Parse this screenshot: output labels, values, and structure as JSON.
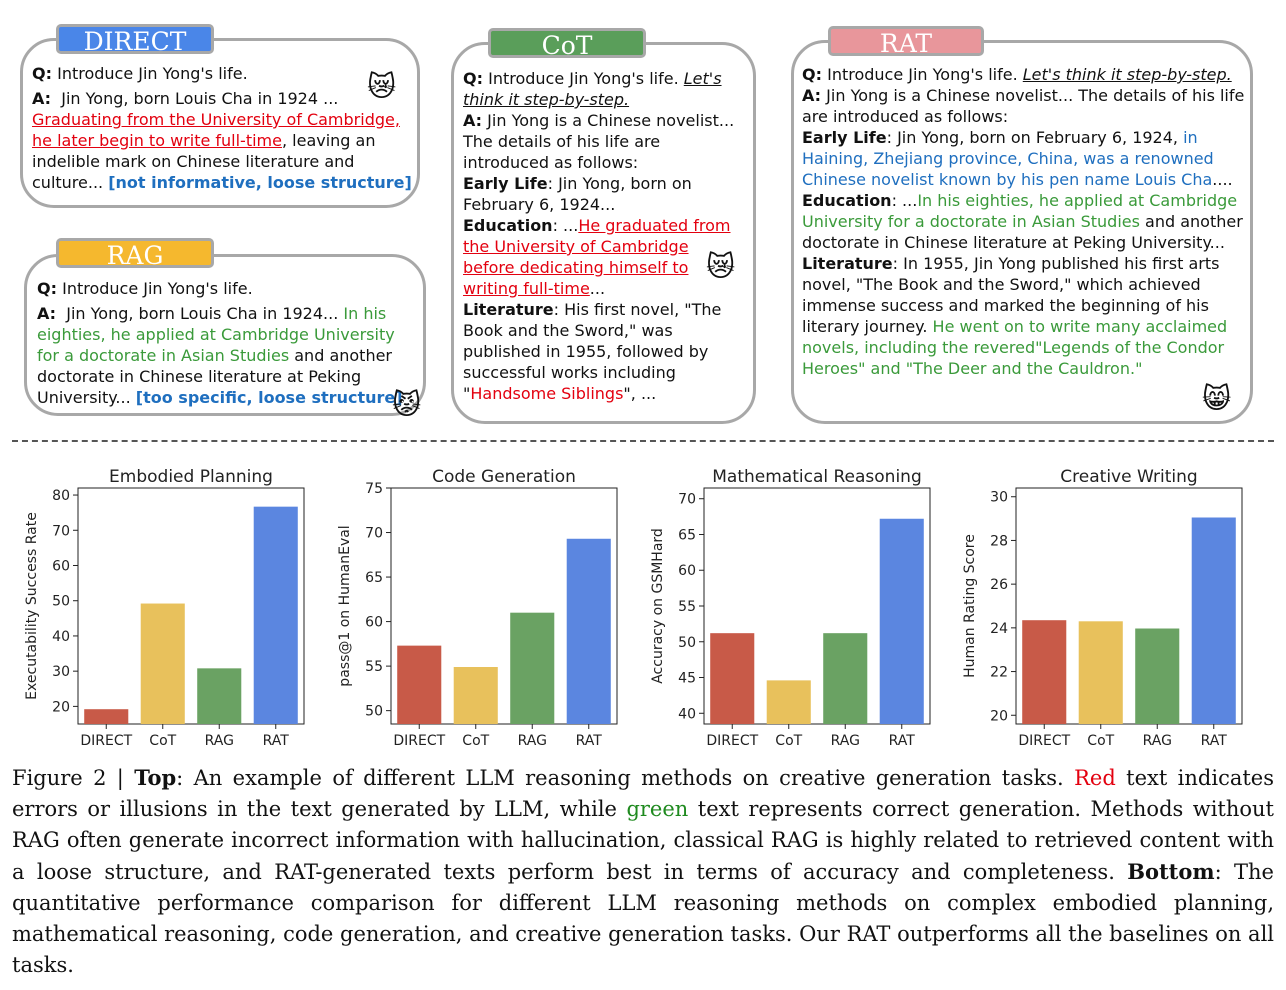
{
  "panels": {
    "direct": {
      "title": "DIRECT",
      "q_label": "Q:",
      "q": "Introduce Jin Yong's life.",
      "a_label": "A:",
      "a1": "Jin Yong, born Louis Cha in 1924 ...",
      "a_red": "Graduating from the University of Cambridge, he later begin to write full-time",
      "a2": ", leaving an indelible mark on Chinese literature and culture...",
      "a_note": "[not informative, loose structure]",
      "emoji": "😿"
    },
    "rag": {
      "title": "RAG",
      "q_label": "Q:",
      "q": "Introduce Jin Yong's life.",
      "a_label": "A:",
      "a1": "Jin Yong, born Louis Cha in 1924...",
      "a_green": "In his eighties, he applied at Cambridge University for a doctorate in Asian Studies",
      "a2": "and another doctorate in Chinese literature at Peking University...",
      "a_note": "[too specific, loose structure]",
      "emoji": "😾"
    },
    "cot": {
      "title": "CoT",
      "q_label": "Q:",
      "q": "Introduce Jin Yong's life.",
      "q_prompt": "Let's think it step-by-step.",
      "a_label": "A:",
      "a1": "Jin Yong is a Chinese novelist... The details of his life are introduced as follows:",
      "early_label": "Early Life",
      "early": ": Jin Yong, born on February 6, 1924...",
      "edu_label": "Education",
      "edu_pre": ": ...",
      "edu_red": "He graduated from the University of Cambridge before dedicating himself to writing full-time",
      "edu_post": "...",
      "lit_label": "Literature",
      "lit": ": His first novel, \"The Book and the Sword,\" was published in 1955, followed by successful works including \"",
      "lit_red": "Handsome Siblings",
      "lit_post": "\", ...",
      "emoji": "😿"
    },
    "rat": {
      "title": "RAT",
      "q_label": "Q:",
      "q": "Introduce Jin Yong's life.",
      "q_prompt": "Let's think it step-by-step.",
      "a_label": "A:",
      "a1": "Jin Yong is a Chinese novelist... The details of his life are introduced as follows:",
      "early_label": "Early Life",
      "early": ": Jin Yong, born on February 6, 1924,",
      "early_blue": "in Haining, Zhejiang province, China, was a renowned Chinese novelist known by his pen name Louis Cha",
      "early_post": "....",
      "edu_label": "Education",
      "edu_pre": ": ...",
      "edu_green": "In his eighties, he applied at Cambridge University for a doctorate in Asian Studies",
      "edu_post": "and another doctorate in Chinese literature at Peking University...",
      "lit_label": "Literature",
      "lit": ": In 1955, Jin Yong published his first arts novel, \"The Book and the Sword,\" which achieved immense success and marked the beginning of his literary journey.",
      "lit_green": "He went on to write many acclaimed novels, including the revered\"Legends of the Condor Heroes\" and \"The Deer and the Cauldron.\"",
      "emoji": "😸"
    }
  },
  "colors": {
    "direct": "#4a86e8",
    "cot": "#5a9e5a",
    "rat": "#e8969b",
    "rag": "#f5b82e",
    "bar_direct": "#c85a48",
    "bar_cot": "#e8c15c",
    "bar_rag": "#6aa263",
    "bar_rat": "#5b86e0"
  },
  "chart_data": [
    {
      "type": "bar",
      "title": "Embodied Planning",
      "ylabel": "Executability Success Rate",
      "categories": [
        "DIRECT",
        "CoT",
        "RAG",
        "RAT"
      ],
      "values": [
        19.2,
        49.2,
        30.8,
        76.7
      ],
      "ylim": [
        15,
        82
      ],
      "yticks": [
        20,
        30,
        40,
        50,
        60,
        70,
        80
      ]
    },
    {
      "type": "bar",
      "title": "Code Generation",
      "ylabel": "pass@1 on HumanEval",
      "categories": [
        "DIRECT",
        "CoT",
        "RAG",
        "RAT"
      ],
      "values": [
        57.3,
        54.9,
        61.0,
        69.3
      ],
      "ylim": [
        48.5,
        75
      ],
      "yticks": [
        50,
        55,
        60,
        65,
        70,
        75
      ]
    },
    {
      "type": "bar",
      "title": "Mathematical Reasoning",
      "ylabel": "Accuracy on GSMHard",
      "categories": [
        "DIRECT",
        "CoT",
        "RAG",
        "RAT"
      ],
      "values": [
        51.2,
        44.6,
        51.2,
        67.2
      ],
      "ylim": [
        38.5,
        71.5
      ],
      "yticks": [
        40,
        45,
        50,
        55,
        60,
        65,
        70
      ]
    },
    {
      "type": "bar",
      "title": "Creative Writing",
      "ylabel": "Human Rating Score",
      "categories": [
        "DIRECT",
        "CoT",
        "RAG",
        "RAT"
      ],
      "values": [
        24.35,
        24.3,
        23.97,
        29.05
      ],
      "ylim": [
        19.6,
        30.4
      ],
      "yticks": [
        20,
        22,
        24,
        26,
        28,
        30
      ]
    }
  ],
  "caption": {
    "fig": "Figure 2 | ",
    "top_label": "Top",
    "t1": ": An example of different LLM reasoning methods on creative generation tasks.",
    "red_word": "Red",
    "t2": "text indicates errors or illusions in the text generated by LLM, while",
    "green_word": "green",
    "t3": "text represents correct generation. Methods without RAG often generate incorrect information with hallucination, classical RAG is highly related to retrieved content with a loose structure, and RAT-generated texts perform best in terms of accuracy and completeness.",
    "bottom_label": "Bottom",
    "t4": ": The quantitative performance comparison for different LLM reasoning methods on complex embodied planning, mathematical reasoning, code generation, and creative generation tasks. Our RAT outperforms all the baselines on all tasks."
  }
}
